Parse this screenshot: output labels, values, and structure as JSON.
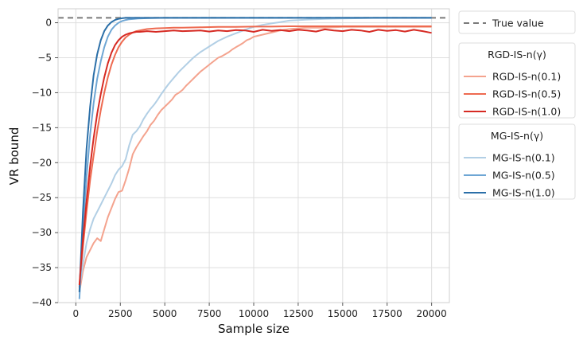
{
  "chart_data": {
    "type": "line",
    "xlabel": "Sample size",
    "ylabel": "VR bound",
    "xlim": [
      -1000,
      21000
    ],
    "ylim": [
      -40,
      2
    ],
    "xticks": [
      0,
      2500,
      5000,
      7500,
      10000,
      12500,
      15000,
      17500,
      20000
    ],
    "xtick_labels": [
      "0",
      "2500",
      "5000",
      "7500",
      "10000",
      "12500",
      "15000",
      "17500",
      "20000"
    ],
    "yticks": [
      0,
      -5,
      -10,
      -15,
      -20,
      -25,
      -30,
      -35,
      -40
    ],
    "ytick_labels": [
      "0",
      "−5",
      "−10",
      "−15",
      "−20",
      "−25",
      "−30",
      "−35",
      "−40"
    ],
    "grid": true,
    "reference_line": {
      "name": "True value",
      "y": 0.7,
      "color": "#7a7a7a",
      "style": "dashed"
    },
    "legend_groups": [
      {
        "title": "",
        "entries": [
          "True value"
        ]
      },
      {
        "title": "RGD-IS-n(γ)",
        "entries": [
          "RGD-IS-n(0.1)",
          "RGD-IS-n(0.5)",
          "RGD-IS-n(1.0)"
        ]
      },
      {
        "title": "MG-IS-n(γ)",
        "entries": [
          "MG-IS-n(0.1)",
          "MG-IS-n(0.5)",
          "MG-IS-n(1.0)"
        ]
      }
    ],
    "legend_position": "outside-right",
    "series": [
      {
        "name": "RGD-IS-n(0.1)",
        "color": "#f4a38e",
        "x": [
          200,
          400,
          600,
          800,
          1000,
          1200,
          1400,
          1600,
          1800,
          2000,
          2200,
          2400,
          2600,
          2800,
          3000,
          3200,
          3400,
          3600,
          3800,
          4000,
          4200,
          4400,
          4600,
          4800,
          5000,
          5200,
          5400,
          5600,
          5800,
          6000,
          6200,
          6400,
          6600,
          6800,
          7000,
          7200,
          7400,
          7600,
          7800,
          8000,
          8200,
          8400,
          8600,
          8800,
          9000,
          9200,
          9400,
          9600,
          9800,
          10000,
          10500,
          11000,
          11500,
          12000,
          13000,
          14000,
          15000,
          16000,
          17000,
          18000,
          19000,
          20000
        ],
        "y": [
          -38.5,
          -35.5,
          -33.5,
          -32.5,
          -31.5,
          -30.8,
          -31.2,
          -29.5,
          -27.8,
          -26.5,
          -25.2,
          -24.2,
          -24.0,
          -22.5,
          -20.8,
          -18.8,
          -17.8,
          -17.0,
          -16.2,
          -15.5,
          -14.6,
          -14.0,
          -13.2,
          -12.5,
          -12.0,
          -11.5,
          -11.0,
          -10.3,
          -10.0,
          -9.6,
          -9.0,
          -8.5,
          -8.0,
          -7.5,
          -7.0,
          -6.6,
          -6.2,
          -5.8,
          -5.4,
          -5.0,
          -4.8,
          -4.5,
          -4.2,
          -3.8,
          -3.5,
          -3.2,
          -2.9,
          -2.5,
          -2.3,
          -2.0,
          -1.7,
          -1.4,
          -1.1,
          -0.9,
          -0.7,
          -0.7,
          -0.6,
          -0.6,
          -0.6,
          -0.6,
          -0.6,
          -0.6
        ]
      },
      {
        "name": "RGD-IS-n(0.5)",
        "color": "#ee6a50",
        "x": [
          200,
          400,
          600,
          800,
          1000,
          1200,
          1400,
          1600,
          1800,
          2000,
          2200,
          2400,
          2600,
          2800,
          3000,
          3200,
          3400,
          3600,
          3800,
          4000,
          4500,
          5000,
          5500,
          6000,
          7000,
          8000,
          9000,
          10000,
          11000,
          12000,
          13000,
          14000,
          15000,
          16000,
          17000,
          18000,
          19000,
          20000
        ],
        "y": [
          -37.8,
          -32.0,
          -27.0,
          -22.5,
          -19.0,
          -15.5,
          -12.5,
          -10.0,
          -7.8,
          -6.0,
          -4.6,
          -3.5,
          -2.7,
          -2.1,
          -1.7,
          -1.4,
          -1.2,
          -1.1,
          -1.0,
          -0.9,
          -0.8,
          -0.75,
          -0.7,
          -0.7,
          -0.65,
          -0.6,
          -0.6,
          -0.55,
          -0.55,
          -0.5,
          -0.5,
          -0.5,
          -0.5,
          -0.5,
          -0.5,
          -0.5,
          -0.5,
          -0.5
        ]
      },
      {
        "name": "RGD-IS-n(1.0)",
        "color": "#d62a23",
        "x": [
          200,
          400,
          600,
          800,
          1000,
          1200,
          1400,
          1600,
          1800,
          2000,
          2200,
          2400,
          2600,
          2800,
          3000,
          3200,
          3400,
          3600,
          3800,
          4000,
          4500,
          5000,
          5500,
          6000,
          6500,
          7000,
          7500,
          8000,
          8500,
          9000,
          9500,
          10000,
          10500,
          11000,
          11500,
          12000,
          12500,
          13000,
          13500,
          14000,
          14500,
          15000,
          15500,
          16000,
          16500,
          17000,
          17500,
          18000,
          18500,
          19000,
          19500,
          20000
        ],
        "y": [
          -37.5,
          -31.0,
          -25.5,
          -20.5,
          -16.5,
          -13.0,
          -10.2,
          -7.8,
          -5.8,
          -4.3,
          -3.2,
          -2.5,
          -2.0,
          -1.7,
          -1.5,
          -1.4,
          -1.3,
          -1.3,
          -1.25,
          -1.2,
          -1.3,
          -1.2,
          -1.1,
          -1.2,
          -1.15,
          -1.1,
          -1.25,
          -1.1,
          -1.2,
          -1.05,
          -1.1,
          -1.3,
          -1.0,
          -1.15,
          -1.05,
          -1.2,
          -1.0,
          -1.1,
          -1.25,
          -0.95,
          -1.1,
          -1.2,
          -1.0,
          -1.1,
          -1.3,
          -1.0,
          -1.15,
          -1.05,
          -1.25,
          -1.0,
          -1.2,
          -1.45
        ]
      },
      {
        "name": "MG-IS-n(0.1)",
        "color": "#b2cfe5",
        "x": [
          200,
          400,
          600,
          800,
          1000,
          1200,
          1400,
          1600,
          1800,
          2000,
          2200,
          2400,
          2600,
          2800,
          3000,
          3200,
          3400,
          3600,
          3800,
          4000,
          4200,
          4400,
          4600,
          4800,
          5000,
          5200,
          5400,
          5600,
          5800,
          6000,
          6200,
          6400,
          6600,
          6800,
          7000,
          7500,
          8000,
          8500,
          9000,
          9500,
          10000,
          10500,
          11000,
          11500,
          12000,
          13000,
          14000,
          15000,
          16000,
          17000,
          18000,
          19000,
          20000
        ],
        "y": [
          -38.0,
          -34.5,
          -31.5,
          -29.5,
          -28.0,
          -27.0,
          -26.0,
          -25.0,
          -24.0,
          -23.0,
          -21.8,
          -21.0,
          -20.5,
          -19.5,
          -17.5,
          -16.0,
          -15.5,
          -14.8,
          -13.8,
          -13.0,
          -12.3,
          -11.7,
          -11.0,
          -10.2,
          -9.5,
          -8.8,
          -8.2,
          -7.6,
          -7.0,
          -6.5,
          -6.0,
          -5.5,
          -5.0,
          -4.6,
          -4.2,
          -3.4,
          -2.6,
          -2.0,
          -1.5,
          -1.0,
          -0.6,
          -0.3,
          -0.1,
          0.1,
          0.3,
          0.45,
          0.55,
          0.6,
          0.65,
          0.7,
          0.7,
          0.7,
          0.7
        ]
      },
      {
        "name": "MG-IS-n(0.5)",
        "color": "#6ea6d4",
        "x": [
          200,
          400,
          600,
          800,
          1000,
          1200,
          1400,
          1600,
          1800,
          2000,
          2200,
          2400,
          2600,
          2800,
          3000,
          3500,
          4000,
          5000,
          6000,
          8000,
          10000,
          12000,
          14000,
          16000,
          18000,
          20000
        ],
        "y": [
          -39.5,
          -30.0,
          -22.0,
          -16.0,
          -11.5,
          -8.0,
          -5.5,
          -3.5,
          -2.0,
          -1.0,
          -0.4,
          0.0,
          0.25,
          0.4,
          0.5,
          0.6,
          0.65,
          0.7,
          0.7,
          0.7,
          0.7,
          0.7,
          0.7,
          0.7,
          0.7,
          0.7
        ]
      },
      {
        "name": "MG-IS-n(1.0)",
        "color": "#2b6fa8",
        "x": [
          200,
          400,
          600,
          800,
          1000,
          1200,
          1400,
          1600,
          1800,
          2000,
          2200,
          2400,
          2600,
          2800,
          3000,
          3500,
          4000,
          5000,
          6000,
          8000,
          10000,
          12000,
          14000,
          16000,
          18000,
          20000
        ],
        "y": [
          -38.5,
          -27.0,
          -18.0,
          -12.0,
          -7.5,
          -4.5,
          -2.5,
          -1.2,
          -0.4,
          0.1,
          0.4,
          0.55,
          0.65,
          0.7,
          0.7,
          0.7,
          0.7,
          0.7,
          0.7,
          0.7,
          0.7,
          0.7,
          0.7,
          0.7,
          0.7,
          0.7
        ]
      }
    ]
  }
}
